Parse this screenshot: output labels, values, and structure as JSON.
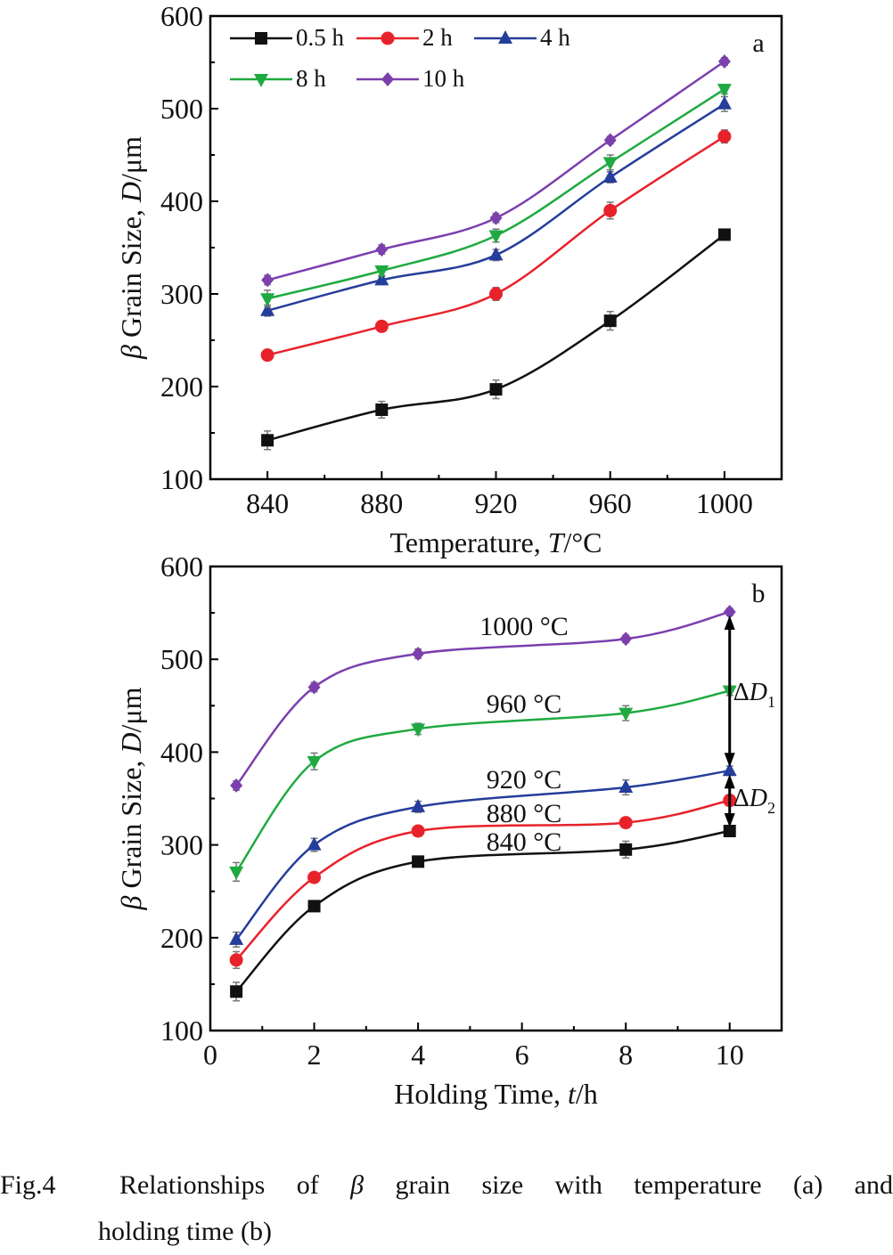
{
  "colors": {
    "0.5 h": "#111111",
    "2 h": "#e8222b",
    "4 h": "#253d9b",
    "8 h": "#1faa41",
    "10 h": "#7b3fae",
    "840 °C": "#111111",
    "880 °C": "#e8222b",
    "920 °C": "#253d9b",
    "960 °C": "#1faa41",
    "1000 °C": "#7b3fae"
  },
  "chart_data": [
    {
      "type": "line",
      "panel_label": "a",
      "title": "",
      "xlabel": "Temperature, T/°C",
      "xlabel_parts": [
        "Temperature, ",
        "T",
        "/°C"
      ],
      "ylabel": "β Grain Size, D/μm",
      "ylabel_parts": [
        "β",
        " Grain Size, ",
        "D",
        "/μm"
      ],
      "x": [
        840,
        880,
        920,
        960,
        1000
      ],
      "xlim": [
        820,
        1020
      ],
      "ylim": [
        100,
        600
      ],
      "xticks": [
        840,
        880,
        920,
        960,
        1000
      ],
      "yticks": [
        100,
        200,
        300,
        400,
        500,
        600
      ],
      "grid": false,
      "legend_position": "top-left",
      "series": [
        {
          "name": "0.5 h",
          "marker": "square",
          "values": [
            142,
            175,
            197,
            271,
            364
          ],
          "errors": [
            10,
            9,
            10,
            10,
            5
          ]
        },
        {
          "name": "2 h",
          "marker": "circle",
          "values": [
            234,
            265,
            300,
            390,
            470
          ],
          "errors": [
            4,
            4,
            7,
            9,
            7
          ]
        },
        {
          "name": "4 h",
          "marker": "triangle-up",
          "values": [
            282,
            315,
            342,
            426,
            505
          ],
          "errors": [
            6,
            4,
            6,
            6,
            8
          ]
        },
        {
          "name": "8 h",
          "marker": "triangle-down",
          "values": [
            295,
            325,
            363,
            442,
            521
          ],
          "errors": [
            9,
            5,
            7,
            8,
            5
          ]
        },
        {
          "name": "10 h",
          "marker": "diamond",
          "values": [
            315,
            348,
            382,
            466,
            551
          ],
          "errors": [
            5,
            5,
            5,
            4,
            4
          ]
        }
      ]
    },
    {
      "type": "line",
      "panel_label": "b",
      "title": "",
      "xlabel": "Holding Time, t/h",
      "xlabel_parts": [
        "Holding Time, ",
        "t",
        "/h"
      ],
      "ylabel": "β Grain Size, D/μm",
      "ylabel_parts": [
        "β",
        " Grain Size, ",
        "D",
        "/μm"
      ],
      "x": [
        0.5,
        2,
        4,
        8,
        10
      ],
      "xlim": [
        0,
        11
      ],
      "ylim": [
        100,
        600
      ],
      "xticks": [
        0,
        2,
        4,
        6,
        8,
        10
      ],
      "yticks": [
        100,
        200,
        300,
        400,
        500,
        600
      ],
      "grid": false,
      "series": [
        {
          "name": "840 °C",
          "marker": "square",
          "values": [
            142,
            234,
            282,
            295,
            315
          ],
          "errors": [
            10,
            4,
            5,
            9,
            5
          ]
        },
        {
          "name": "880 °C",
          "marker": "circle",
          "values": [
            176,
            265,
            315,
            324,
            348
          ],
          "errors": [
            9,
            4,
            4,
            5,
            6
          ]
        },
        {
          "name": "920 °C",
          "marker": "triangle-up",
          "values": [
            198,
            300,
            341,
            362,
            380
          ],
          "errors": [
            8,
            7,
            6,
            8,
            5
          ]
        },
        {
          "name": "960 °C",
          "marker": "triangle-down",
          "values": [
            271,
            390,
            425,
            442,
            466
          ],
          "errors": [
            10,
            9,
            6,
            8,
            5
          ]
        },
        {
          "name": "1000 °C",
          "marker": "diamond",
          "values": [
            364,
            470,
            506,
            522,
            551
          ],
          "errors": [
            5,
            5,
            5,
            4,
            4
          ]
        }
      ],
      "annotations": [
        {
          "type": "double-arrow",
          "x": 10,
          "y1": 551,
          "y2": 380,
          "label": "ΔD",
          "subscript": "1"
        },
        {
          "type": "double-arrow",
          "x": 10,
          "y1": 380,
          "y2": 315,
          "label": "ΔD",
          "subscript": "2"
        }
      ]
    }
  ],
  "caption": {
    "label": "Fig.4",
    "words": [
      "Relationships",
      "of",
      "β",
      "grain",
      "size",
      "with",
      "temperature",
      "(a)",
      "and"
    ],
    "line2": "holding time (b)"
  }
}
